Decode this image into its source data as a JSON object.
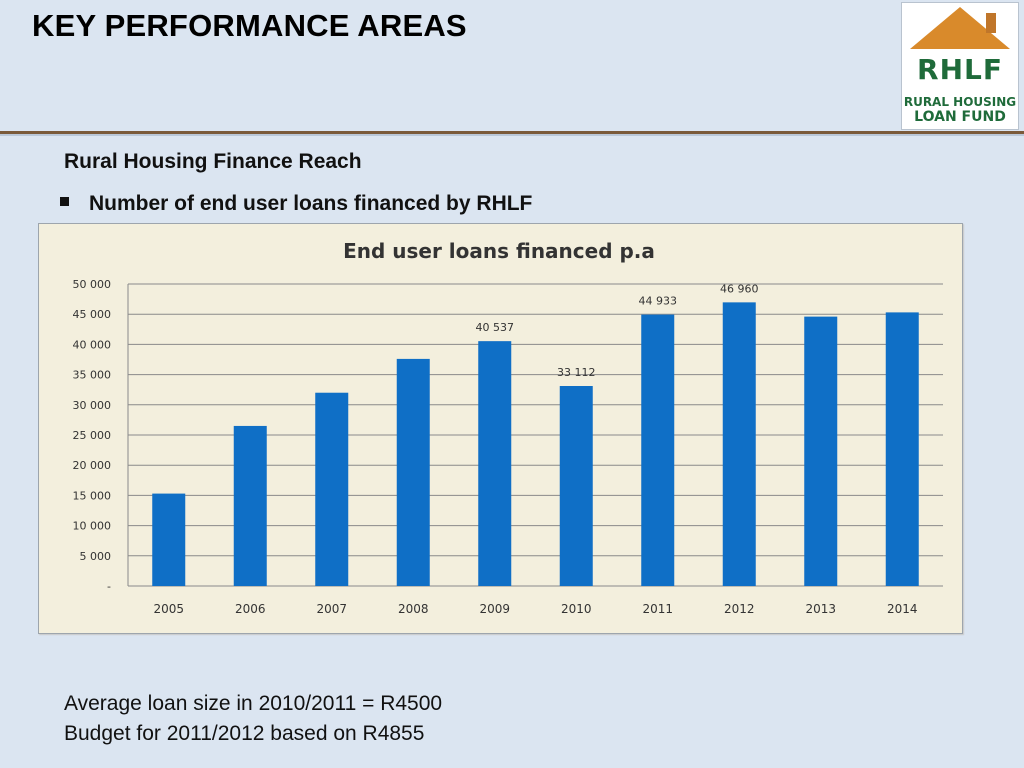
{
  "slide": {
    "title": "KEY PERFORMANCE AREAS",
    "subtitle": "Rural Housing Finance Reach",
    "bullet": "Number of end user loans financed by RHLF",
    "notes": [
      "Average loan size in 2010/2011 = R4500",
      "Budget for 2011/2012 based on R4855"
    ]
  },
  "logo": {
    "abbrev": "RHLF",
    "line1": "RURAL HOUSING",
    "line2": "LOAN FUND",
    "colors": {
      "roof": "#d98a2b",
      "text": "#1f6b3a"
    }
  },
  "colors": {
    "bar": "#0f6fc6",
    "background": "#dbe5f1",
    "chart_bg": "#f3efdd",
    "rule": "#7a5a3a"
  },
  "chart_data": {
    "type": "bar",
    "title": "End user loans financed p.a",
    "xlabel": "",
    "ylabel": "",
    "categories": [
      "2005",
      "2006",
      "2007",
      "2008",
      "2009",
      "2010",
      "2011",
      "2012",
      "2013",
      "2014"
    ],
    "values": [
      15300,
      26500,
      32000,
      37600,
      40537,
      33112,
      44933,
      46960,
      44600,
      45300
    ],
    "data_labels": [
      "",
      "",
      "",
      "",
      "40 537",
      "33 112",
      "44 933",
      "46 960",
      "",
      ""
    ],
    "ylim": [
      0,
      50000
    ],
    "yticks": [
      0,
      5000,
      10000,
      15000,
      20000,
      25000,
      30000,
      35000,
      40000,
      45000,
      50000
    ],
    "ytick_labels": [
      "-",
      "5 000",
      "10 000",
      "15 000",
      "20 000",
      "25 000",
      "30 000",
      "35 000",
      "40 000",
      "45 000",
      "50 000"
    ],
    "grid": true,
    "legend": "none"
  }
}
